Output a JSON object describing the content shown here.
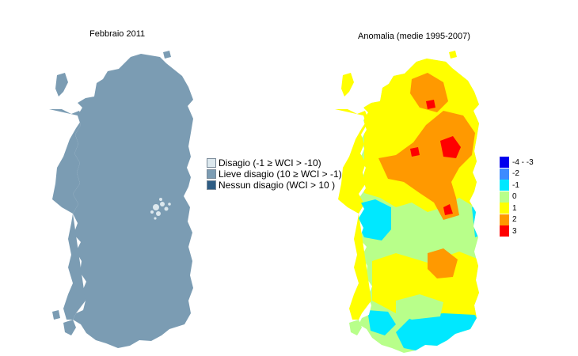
{
  "left_map": {
    "title": "Febbraio 2011",
    "legend": [
      {
        "label": "Disagio (-1 ≥ WCI > -10)",
        "color": "#dce8ee"
      },
      {
        "label": "Lieve disagio (10 ≥ WCI > -1)",
        "color": "#7b9cb3"
      },
      {
        "label": "Nessun disagio (WCI > 10 )",
        "color": "#2e5d84"
      }
    ]
  },
  "right_map": {
    "title": "Anomalia (medie 1995-2007)",
    "legend": [
      {
        "label": "-4 - -3",
        "color": "#0000ee"
      },
      {
        "label": "-2",
        "color": "#3d8bff"
      },
      {
        "label": "-1",
        "color": "#00e8ff"
      },
      {
        "label": "0",
        "color": "#b8ff8a"
      },
      {
        "label": "1",
        "color": "#ffff00"
      },
      {
        "label": "2",
        "color": "#ff9900"
      },
      {
        "label": "3",
        "color": "#ff0000"
      }
    ]
  }
}
